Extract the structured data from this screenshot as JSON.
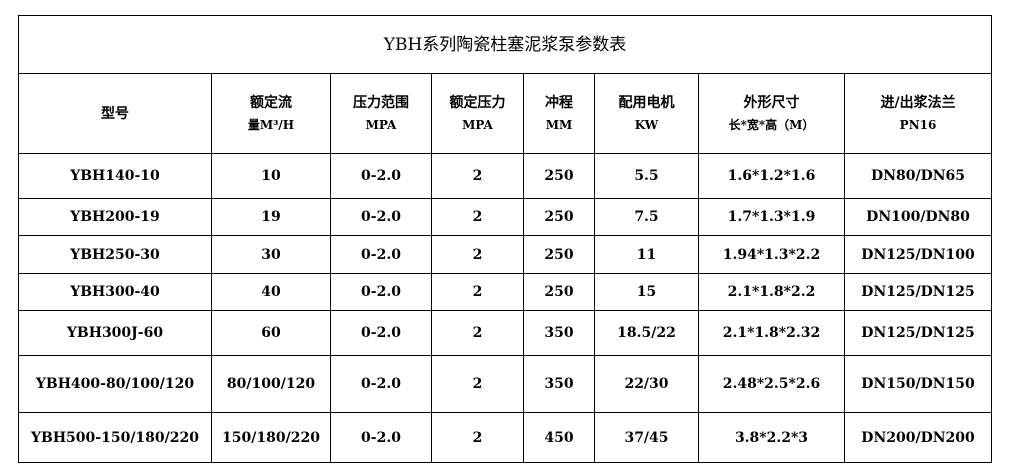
{
  "title": "YBH系列陶瓷柱塞泥浆泵参数表",
  "headers": [
    {
      "line1": "型号",
      "line2": ""
    },
    {
      "line1": "额定流",
      "line2": "量M³/H"
    },
    {
      "line1": "压力范围",
      "line2": "MPA"
    },
    {
      "line1": "额定压力",
      "line2": "MPA"
    },
    {
      "line1": "冲程",
      "line2": "MM"
    },
    {
      "line1": "配用电机",
      "line2": "KW"
    },
    {
      "line1": "外形尺寸",
      "line2": "长*宽*高（M）"
    },
    {
      "line1": "进/出浆法兰",
      "line2": "PN16"
    }
  ],
  "rows": [
    [
      "YBH140-10",
      "10",
      "0-2.0",
      "2",
      "250",
      "5.5",
      "1.6*1.2*1.6",
      "DN80/DN65"
    ],
    [
      "YBH200-19",
      "19",
      "0-2.0",
      "2",
      "250",
      "7.5",
      "1.7*1.3*1.9",
      "DN100/DN80"
    ],
    [
      "YBH250-30",
      "30",
      "0-2.0",
      "2",
      "250",
      "11",
      "1.94*1.3*2.2",
      "DN125/DN100"
    ],
    [
      "YBH300-40",
      "40",
      "0-2.0",
      "2",
      "250",
      "15",
      "2.1*1.8*2.2",
      "DN125/DN125"
    ],
    [
      "YBH300J-60",
      "60",
      "0-2.0",
      "2",
      "350",
      "18.5/22",
      "2.1*1.8*2.32",
      "DN125/DN125"
    ],
    [
      "YBH400-80/100/120",
      "80/100/120",
      "0-2.0",
      "2",
      "350",
      "22/30",
      "2.48*2.5*2.6",
      "DN150/DN150"
    ],
    [
      "YBH500-150/180/220",
      "150/180/220",
      "0-2.0",
      "2",
      "450",
      "37/45",
      "3.8*2.2*3",
      "DN200/DN200"
    ]
  ]
}
